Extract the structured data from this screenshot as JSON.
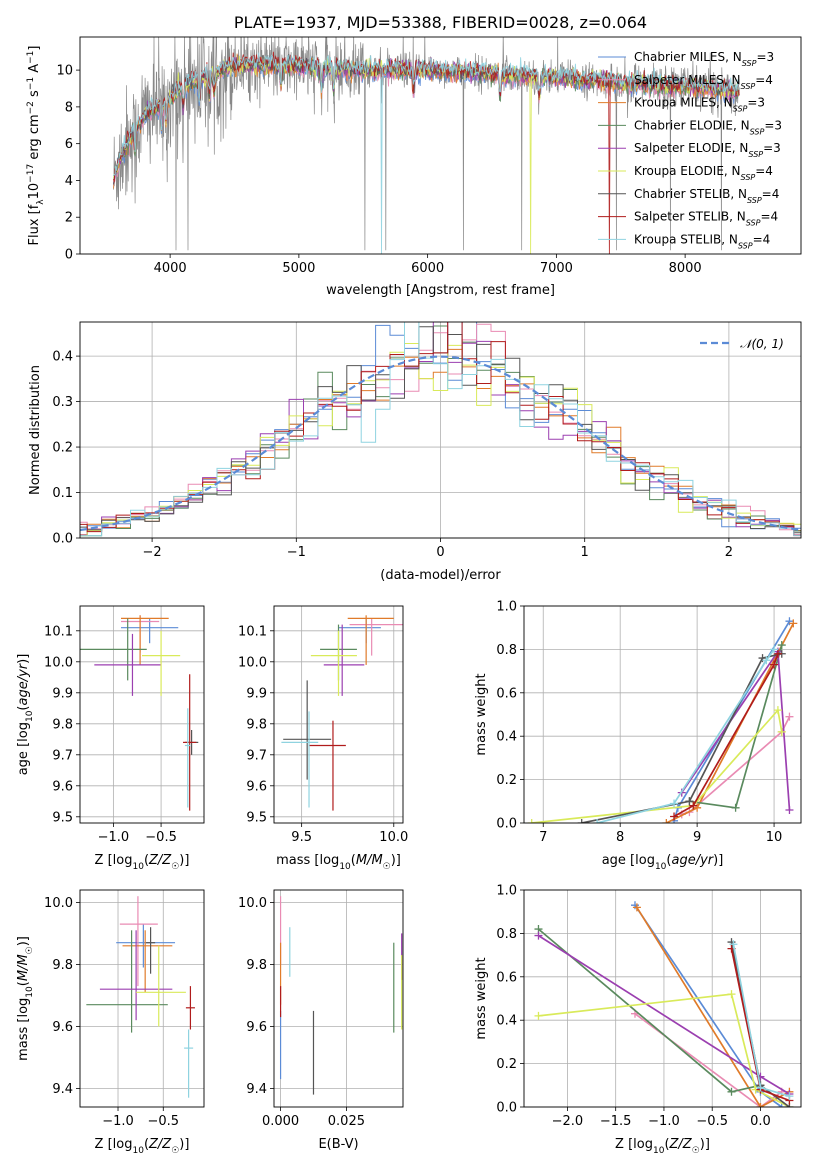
{
  "figure": {
    "title": "PLATE=1937, MJD=53388, FIBERID=0028, z=0.064"
  },
  "palette": {
    "Chabrier MILES": "#5b8bd6",
    "Salpeter MILES": "#e98bb3",
    "Kroupa MILES": "#e07b2a",
    "Chabrier ELODIE": "#5a8a5e",
    "Salpeter ELODIE": "#9b3fb0",
    "Kroupa ELODIE": "#d9ea5a",
    "Chabrier STELIB": "#555555",
    "Salpeter STELIB": "#b01c1c",
    "Kroupa STELIB": "#8fd3e0",
    "data": "#888888",
    "normal": "#5b8bd6"
  },
  "chart_data": [
    {
      "id": "spectrum",
      "type": "line",
      "title": "PLATE=1937, MJD=53388, FIBERID=0028, z=0.064",
      "xlabel": "wavelength [Angstrom, rest frame]",
      "ylabel": "Flux [fλ10⁻¹⁷ erg cm⁻² s⁻¹ A⁻¹]",
      "xlim": [
        3300,
        8900
      ],
      "ylim": [
        0,
        11.8
      ],
      "xticks": [
        4000,
        5000,
        6000,
        7000,
        8000
      ],
      "yticks": [
        0,
        2,
        4,
        6,
        8,
        10
      ],
      "grid": false,
      "legend_position": "upper-right",
      "legend": [
        {
          "name": "Chabrier MILES",
          "sub": "SSP",
          "n": "3"
        },
        {
          "name": "Salpeter MILES",
          "sub": "SSP",
          "n": "4"
        },
        {
          "name": "Kroupa MILES",
          "sub": "SSP",
          "n": "3"
        },
        {
          "name": "Chabrier ELODIE",
          "sub": "SSP",
          "n": "3"
        },
        {
          "name": "Salpeter ELODIE",
          "sub": "SSP",
          "n": "3"
        },
        {
          "name": "Kroupa ELODIE",
          "sub": "SSP",
          "n": "4"
        },
        {
          "name": "Chabrier STELIB",
          "sub": "SSP",
          "n": "4"
        },
        {
          "name": "Salpeter STELIB",
          "sub": "SSP",
          "n": "4"
        },
        {
          "name": "Kroupa STELIB",
          "sub": "SSP",
          "n": "4"
        }
      ],
      "continuum": {
        "x": [
          3560,
          3600,
          3700,
          3800,
          3900,
          4000,
          4100,
          4200,
          4300,
          4400,
          4500,
          4700,
          5000,
          5500,
          6000,
          6500,
          7000,
          7400,
          7500,
          8000,
          8400
        ],
        "y": [
          4.0,
          5.0,
          6.5,
          7.5,
          8.0,
          8.5,
          9.1,
          9.5,
          9.7,
          10.0,
          10.2,
          10.3,
          10.2,
          10.0,
          10.0,
          9.8,
          9.6,
          9.4,
          9.3,
          9.1,
          8.9
        ]
      },
      "model_cutoffs": {
        "Kroupa ELODIE": [
          3890,
          6800
        ],
        "Salpeter STELIB": [
          3600,
          7410
        ],
        "Kroupa STELIB": [
          3600,
          5640
        ]
      }
    },
    {
      "id": "residuals",
      "type": "step",
      "xlabel": "(data-model)/error",
      "ylabel": "Normed distribution",
      "xlim": [
        -2.5,
        2.5
      ],
      "ylim": [
        0,
        0.475
      ],
      "xticks": [
        -2,
        -1,
        0,
        1,
        2
      ],
      "yticks": [
        0.0,
        0.1,
        0.2,
        0.3,
        0.4
      ],
      "grid": true,
      "legend_position": "upper-right",
      "legend": [
        {
          "label": "𝒩(0, 1)"
        }
      ],
      "bin_width": 0.1
    },
    {
      "id": "age-z",
      "type": "errorbar",
      "xlabel": "Z [log₁₀(Z/Z☉)]",
      "ylabel": "age  [log₁₀(age/yr)]",
      "xlim": [
        -1.35,
        -0.05
      ],
      "ylim": [
        9.48,
        10.18
      ],
      "xticks": [
        -1.0,
        -0.5
      ],
      "yticks": [
        9.5,
        9.6,
        9.7,
        9.8,
        9.9,
        10.0,
        10.1
      ],
      "grid": true,
      "points": [
        {
          "series": "Chabrier MILES",
          "x": -0.62,
          "y": 10.11,
          "xerr": [
            0.3,
            0.3
          ],
          "yerr": [
            0.05,
            0.03
          ]
        },
        {
          "series": "Salpeter MILES",
          "x": -0.72,
          "y": 10.13,
          "xerr": [
            0.2,
            0.2
          ],
          "yerr": [
            0.1,
            0.02
          ]
        },
        {
          "series": "Kroupa MILES",
          "x": -0.72,
          "y": 10.14,
          "xerr": [
            0.2,
            0.3
          ],
          "yerr": [
            0.15,
            0.01
          ]
        },
        {
          "series": "Chabrier ELODIE",
          "x": -0.85,
          "y": 10.04,
          "xerr": [
            0.5,
            0.2
          ],
          "yerr": [
            0.1,
            0.1
          ]
        },
        {
          "series": "Salpeter ELODIE",
          "x": -0.8,
          "y": 9.99,
          "xerr": [
            0.4,
            0.3
          ],
          "yerr": [
            0.1,
            0.1
          ]
        },
        {
          "series": "Kroupa ELODIE",
          "x": -0.5,
          "y": 10.02,
          "xerr": [
            0.2,
            0.2
          ],
          "yerr": [
            0.13,
            0.08
          ]
        },
        {
          "series": "Chabrier STELIB",
          "x": -0.18,
          "y": 9.74,
          "xerr": [
            0.07,
            0.07
          ],
          "yerr": [
            0.04,
            0.04
          ]
        },
        {
          "series": "Salpeter STELIB",
          "x": -0.2,
          "y": 9.74,
          "xerr": [
            0.07,
            0.07
          ],
          "yerr": [
            0.22,
            0.22
          ]
        },
        {
          "series": "Kroupa STELIB",
          "x": -0.22,
          "y": 9.73,
          "xerr": [
            0.03,
            0.03
          ],
          "yerr": [
            0.2,
            0.12
          ]
        }
      ]
    },
    {
      "id": "age-mass",
      "type": "errorbar",
      "xlabel": "mass [log₁₀(M/M☉)]",
      "ylabel": "",
      "xlim": [
        9.35,
        10.05
      ],
      "ylim": [
        9.48,
        10.18
      ],
      "xticks": [
        9.5,
        10.0
      ],
      "yticks": [
        9.5,
        9.6,
        9.7,
        9.8,
        9.9,
        10.0,
        10.1
      ],
      "grid": true,
      "points": [
        {
          "series": "Chabrier MILES",
          "x": 9.85,
          "y": 10.11,
          "xerr": [
            0.15,
            0.08
          ],
          "yerr": [
            0.05,
            0.03
          ]
        },
        {
          "series": "Salpeter MILES",
          "x": 9.88,
          "y": 10.12,
          "xerr": [
            0.12,
            0.18
          ],
          "yerr": [
            0.1,
            0.02
          ]
        },
        {
          "series": "Kroupa MILES",
          "x": 9.85,
          "y": 10.14,
          "xerr": [
            0.1,
            0.15
          ],
          "yerr": [
            0.15,
            0.01
          ]
        },
        {
          "series": "Chabrier ELODIE",
          "x": 9.7,
          "y": 10.04,
          "xerr": [
            0.1,
            0.1
          ],
          "yerr": [
            0.1,
            0.08
          ]
        },
        {
          "series": "Salpeter ELODIE",
          "x": 9.72,
          "y": 9.99,
          "xerr": [
            0.1,
            0.12
          ],
          "yerr": [
            0.1,
            0.13
          ]
        },
        {
          "series": "Kroupa ELODIE",
          "x": 9.7,
          "y": 10.02,
          "xerr": [
            0.15,
            0.1
          ],
          "yerr": [
            0.13,
            0.08
          ]
        },
        {
          "series": "Chabrier STELIB",
          "x": 9.53,
          "y": 9.75,
          "xerr": [
            0.13,
            0.13
          ],
          "yerr": [
            0.13,
            0.19
          ]
        },
        {
          "series": "Salpeter STELIB",
          "x": 9.67,
          "y": 9.73,
          "xerr": [
            0.13,
            0.07
          ],
          "yerr": [
            0.21,
            0.08
          ]
        },
        {
          "series": "Kroupa STELIB",
          "x": 9.54,
          "y": 9.74,
          "xerr": [
            0.15,
            0.05
          ],
          "yerr": [
            0.21,
            0.1
          ]
        }
      ]
    },
    {
      "id": "weight-age",
      "type": "line",
      "xlabel": "age  [log₁₀(age/yr)]",
      "ylabel": "mass weight",
      "xlim": [
        6.75,
        10.35
      ],
      "ylim": [
        0,
        1.0
      ],
      "xticks": [
        7,
        8,
        9,
        10
      ],
      "yticks": [
        0.0,
        0.2,
        0.4,
        0.6,
        0.8,
        1.0
      ],
      "grid": true,
      "series": [
        {
          "name": "Chabrier MILES",
          "x": [
            8.7,
            8.75,
            10.2
          ],
          "y": [
            0.01,
            0.07,
            0.93
          ]
        },
        {
          "name": "Salpeter MILES",
          "x": [
            8.8,
            8.9,
            10.1,
            10.2
          ],
          "y": [
            0.04,
            0.05,
            0.42,
            0.49
          ]
        },
        {
          "name": "Kroupa MILES",
          "x": [
            8.6,
            9.0,
            10.25
          ],
          "y": [
            0.0,
            0.07,
            0.92
          ]
        },
        {
          "name": "Chabrier ELODIE",
          "x": [
            8.9,
            9.5,
            10.1
          ],
          "y": [
            0.1,
            0.07,
            0.82
          ]
        },
        {
          "name": "Salpeter ELODIE",
          "x": [
            8.8,
            10.05,
            10.2
          ],
          "y": [
            0.14,
            0.79,
            0.06
          ]
        },
        {
          "name": "Kroupa ELODIE",
          "x": [
            6.85,
            8.95,
            10.05,
            10.1
          ],
          "y": [
            0.0,
            0.08,
            0.52,
            0.42
          ]
        },
        {
          "name": "Chabrier STELIB",
          "x": [
            7.5,
            8.9,
            9.85,
            10.1
          ],
          "y": [
            0.0,
            0.1,
            0.76,
            0.78
          ]
        },
        {
          "name": "Salpeter STELIB",
          "x": [
            8.7,
            8.95,
            10.0,
            10.05
          ],
          "y": [
            0.03,
            0.08,
            0.73,
            0.78
          ]
        },
        {
          "name": "Kroupa STELIB",
          "x": [
            7.7,
            8.7,
            9.9,
            10.0
          ],
          "y": [
            0.0,
            0.09,
            0.75,
            0.8
          ]
        }
      ]
    },
    {
      "id": "mass-z",
      "type": "errorbar",
      "xlabel": "Z [log₁₀(Z/Z☉)]",
      "ylabel": "mass [log₁₀(M/M☉)]",
      "xlim": [
        -1.42,
        -0.05
      ],
      "ylim": [
        9.34,
        10.04
      ],
      "xticks": [
        -1.0,
        -0.5
      ],
      "yticks": [
        9.4,
        9.6,
        9.8,
        10.0
      ],
      "grid": true,
      "points": [
        {
          "series": "Chabrier MILES",
          "x": -0.72,
          "y": 9.87,
          "xerr": [
            0.3,
            0.35
          ],
          "yerr": [
            0.08,
            0.06
          ]
        },
        {
          "series": "Salpeter MILES",
          "x": -0.78,
          "y": 9.93,
          "xerr": [
            0.2,
            0.22
          ],
          "yerr": [
            0.2,
            0.09
          ]
        },
        {
          "series": "Kroupa MILES",
          "x": -0.7,
          "y": 9.86,
          "xerr": [
            0.25,
            0.3
          ],
          "yerr": [
            0.15,
            0.05
          ]
        },
        {
          "series": "Chabrier ELODIE",
          "x": -0.85,
          "y": 9.67,
          "xerr": [
            0.5,
            0.4
          ],
          "yerr": [
            0.09,
            0.24
          ]
        },
        {
          "series": "Salpeter ELODIE",
          "x": -0.8,
          "y": 9.72,
          "xerr": [
            0.4,
            0.4
          ],
          "yerr": [
            0.1,
            0.19
          ]
        },
        {
          "series": "Kroupa ELODIE",
          "x": -0.55,
          "y": 9.71,
          "xerr": [
            0.25,
            0.3
          ],
          "yerr": [
            0.11,
            0.15
          ]
        },
        {
          "series": "Chabrier STELIB",
          "x": -0.64,
          "y": 9.87,
          "xerr": [
            0.05,
            0.05
          ],
          "yerr": [
            0.1,
            0.05
          ]
        },
        {
          "series": "Salpeter STELIB",
          "x": -0.2,
          "y": 9.66,
          "xerr": [
            0.05,
            0.05
          ],
          "yerr": [
            0.07,
            0.07
          ]
        },
        {
          "series": "Kroupa STELIB",
          "x": -0.22,
          "y": 9.53,
          "xerr": [
            0.05,
            0.05
          ],
          "yerr": [
            0.16,
            0.06
          ]
        }
      ]
    },
    {
      "id": "ebv",
      "type": "errorbar",
      "xlabel": "E(B-V)",
      "ylabel": "",
      "xlim": [
        -0.0025,
        0.0465
      ],
      "ylim": [
        9.34,
        10.04
      ],
      "xticks": [
        0.0,
        0.025
      ],
      "yticks": [
        9.4,
        9.6,
        9.8,
        10.0
      ],
      "grid": true,
      "points": [
        {
          "series": "Chabrier MILES",
          "x": 0.0,
          "y": 9.55,
          "yerr": [
            0.12,
            0.1
          ]
        },
        {
          "series": "Salpeter MILES",
          "x": 0.0,
          "y": 9.9,
          "yerr": [
            0.1,
            0.12
          ]
        },
        {
          "series": "Kroupa MILES",
          "x": 0.0,
          "y": 9.75,
          "yerr": [
            0.08,
            0.12
          ]
        },
        {
          "series": "Chabrier ELODIE",
          "x": 0.043,
          "y": 9.72,
          "yerr": [
            0.14,
            0.15
          ]
        },
        {
          "series": "Salpeter ELODIE",
          "x": 0.046,
          "y": 9.85,
          "yerr": [
            0.1,
            0.05
          ]
        },
        {
          "series": "Kroupa ELODIE",
          "x": 0.046,
          "y": 9.71,
          "yerr": [
            0.12,
            0.12
          ]
        },
        {
          "series": "Chabrier STELIB",
          "x": 0.0125,
          "y": 9.52,
          "yerr": [
            0.14,
            0.13
          ]
        },
        {
          "series": "Salpeter STELIB",
          "x": 0.0,
          "y": 9.68,
          "yerr": [
            0.05,
            0.05
          ]
        },
        {
          "series": "Kroupa STELIB",
          "x": 0.0035,
          "y": 9.84,
          "yerr": [
            0.08,
            0.08
          ]
        }
      ]
    },
    {
      "id": "weight-z",
      "type": "line",
      "xlabel": "Z [log₁₀(Z/Z☉)]",
      "ylabel": "mass weight",
      "xlim": [
        -2.45,
        0.42
      ],
      "ylim": [
        0,
        1.0
      ],
      "xticks": [
        -2.0,
        -1.5,
        -1.0,
        -0.5,
        0.0
      ],
      "yticks": [
        0.0,
        0.2,
        0.4,
        0.6,
        0.8,
        1.0
      ],
      "grid": true,
      "series": [
        {
          "name": "Chabrier MILES",
          "x": [
            -1.3,
            0.0,
            0.22
          ],
          "y": [
            0.93,
            0.07,
            0.0
          ]
        },
        {
          "name": "Salpeter MILES",
          "x": [
            -1.3,
            0.0,
            0.22
          ],
          "y": [
            0.43,
            0.0,
            0.07
          ]
        },
        {
          "name": "Kroupa MILES",
          "x": [
            -1.28,
            0.0,
            0.3
          ],
          "y": [
            0.92,
            0.0,
            0.07
          ]
        },
        {
          "name": "Chabrier ELODIE",
          "x": [
            -2.3,
            -0.3,
            0.0
          ],
          "y": [
            0.82,
            0.07,
            0.1
          ]
        },
        {
          "name": "Salpeter ELODIE",
          "x": [
            -2.3,
            0.0,
            0.3
          ],
          "y": [
            0.79,
            0.14,
            0.06
          ]
        },
        {
          "name": "Kroupa ELODIE",
          "x": [
            -2.3,
            -0.3,
            -0.05,
            0.3
          ],
          "y": [
            0.42,
            0.52,
            0.08,
            0.0
          ]
        },
        {
          "name": "Chabrier STELIB",
          "x": [
            -0.3,
            0.0,
            0.3
          ],
          "y": [
            0.76,
            0.1,
            0.0
          ]
        },
        {
          "name": "Salpeter STELIB",
          "x": [
            -0.3,
            0.0,
            0.3
          ],
          "y": [
            0.73,
            0.08,
            0.03
          ]
        },
        {
          "name": "Kroupa STELIB",
          "x": [
            -0.28,
            0.0,
            0.3
          ],
          "y": [
            0.75,
            0.09,
            0.05
          ]
        }
      ]
    }
  ]
}
